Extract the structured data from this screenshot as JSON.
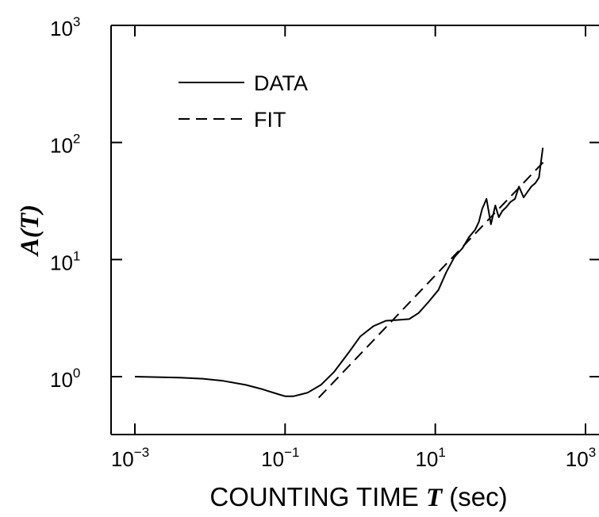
{
  "chart_data": {
    "type": "line",
    "xscale": "log",
    "yscale": "log",
    "xlim": [
      0.0003,
      1000
    ],
    "ylim": [
      0.27,
      1000
    ],
    "x_ticks": [
      {
        "value": 0.001,
        "base": "10",
        "exp": "−3"
      },
      {
        "value": 0.1,
        "base": "10",
        "exp": "−1"
      },
      {
        "value": 10,
        "base": "10",
        "exp": "1"
      },
      {
        "value": 1000,
        "base": "10",
        "exp": "3"
      }
    ],
    "y_ticks": [
      {
        "value": 1,
        "base": "10",
        "exp": "0"
      },
      {
        "value": 10,
        "base": "10",
        "exp": "1"
      },
      {
        "value": 100,
        "base": "10",
        "exp": "2"
      },
      {
        "value": 1000,
        "base": "10",
        "exp": "3"
      }
    ],
    "xlabel": {
      "prefix": "COUNTING TIME ",
      "var": "T",
      "suffix": " (sec)"
    },
    "ylabel": {
      "func": "A(",
      "var": "T",
      "close": ")"
    },
    "legend": {
      "placement": "top-left",
      "entries": [
        "DATA",
        "FIT"
      ]
    },
    "grid": false,
    "series": [
      {
        "name": "DATA",
        "style": "solid",
        "x": [
          0.001,
          0.002,
          0.004,
          0.008,
          0.015,
          0.03,
          0.05,
          0.08,
          0.1,
          0.13,
          0.2,
          0.3,
          0.45,
          0.7,
          1.0,
          1.5,
          2.2,
          3.2,
          4.5,
          6.0,
          8.0,
          11,
          14,
          18,
          23,
          28,
          34,
          38,
          42,
          48,
          55,
          63,
          70,
          78,
          88,
          100,
          115,
          130,
          150,
          170,
          190,
          215,
          240,
          270
        ],
        "y": [
          1.0,
          0.99,
          0.98,
          0.96,
          0.92,
          0.85,
          0.78,
          0.71,
          0.68,
          0.68,
          0.73,
          0.85,
          1.1,
          1.6,
          2.2,
          2.7,
          3.0,
          3.05,
          3.1,
          3.5,
          4.3,
          5.5,
          7.8,
          10.5,
          12.5,
          15.5,
          18,
          21,
          27,
          33,
          20,
          29,
          23,
          26,
          28,
          31,
          33,
          42,
          34,
          38,
          42,
          45,
          50,
          90
        ]
      },
      {
        "name": "FIT",
        "style": "dashed",
        "x": [
          0.28,
          275
        ],
        "y": [
          0.66,
          68
        ]
      }
    ]
  }
}
